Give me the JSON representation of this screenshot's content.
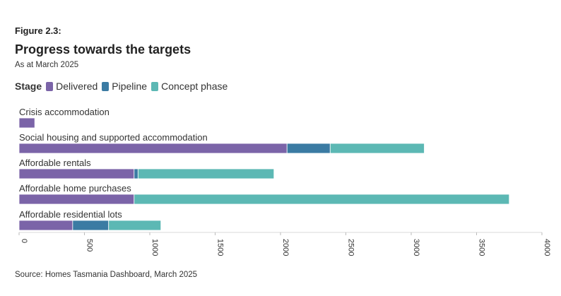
{
  "header": {
    "figure_label": "Figure 2.3:",
    "title": "Progress towards the targets",
    "subtitle": "As at March 2025"
  },
  "legend": {
    "title": "Stage",
    "items": [
      {
        "label": "Delivered",
        "color": "#7B64A8"
      },
      {
        "label": "Pipeline",
        "color": "#3B7BA3"
      },
      {
        "label": "Concept phase",
        "color": "#5CB8B4"
      }
    ]
  },
  "chart_data": {
    "type": "bar",
    "orientation": "horizontal",
    "stacked": true,
    "categories": [
      "Crisis accommodation",
      "Social housing and supported accommodation",
      "Affordable rentals",
      "Affordable home purchases",
      "Affordable residential lots"
    ],
    "series": [
      {
        "name": "Delivered",
        "color": "#7B64A8",
        "values": [
          120,
          2050,
          880,
          880,
          410
        ]
      },
      {
        "name": "Pipeline",
        "color": "#3B7BA3",
        "values": [
          0,
          330,
          30,
          0,
          275
        ]
      },
      {
        "name": "Concept phase",
        "color": "#5CB8B4",
        "values": [
          0,
          720,
          1040,
          2870,
          400
        ]
      }
    ],
    "xlim": [
      0,
      4000
    ],
    "xticks": [
      "0",
      "500",
      "1000",
      "1500",
      "2000",
      "2500",
      "3000",
      "3500",
      "4000"
    ],
    "xtick_values": [
      0,
      500,
      1000,
      1500,
      2000,
      2500,
      3000,
      3500,
      4000
    ],
    "grid": false,
    "legend_position": "top-left"
  },
  "footer": {
    "source": "Source: Homes Tasmania Dashboard, March 2025"
  }
}
